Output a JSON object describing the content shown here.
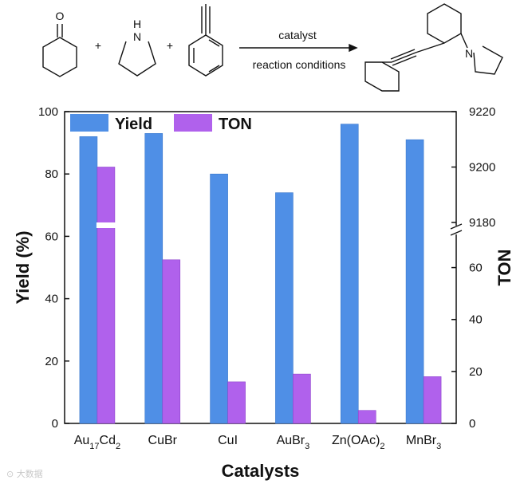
{
  "reaction_scheme": {
    "amine_label": "N",
    "amine_h_label": "H",
    "ketone_o_label": "O",
    "plus": "+",
    "arrow_top": "catalyst",
    "arrow_bottom": "reaction conditions",
    "product_n_label": "N"
  },
  "chart_data": {
    "type": "bar",
    "categories": [
      "Au17Cd2",
      "CuBr",
      "CuI",
      "AuBr3",
      "Zn(OAc)2",
      "MnBr3"
    ],
    "xlabel": "Catalysts",
    "ylabel": "Yield (%)",
    "y2label": "TON",
    "ylim": [
      0,
      100
    ],
    "yticks": [
      0,
      20,
      40,
      60,
      80,
      100
    ],
    "y2_lower": {
      "range": [
        0,
        70
      ],
      "ticks": [
        0,
        20,
        40,
        60
      ]
    },
    "y2_upper": {
      "range": [
        9180,
        9220
      ],
      "ticks": [
        9180,
        9200,
        9220
      ]
    },
    "legend_position": "top-left",
    "grid": false,
    "series": [
      {
        "name": "Yield",
        "color": "#4f8fe6",
        "axis": "left",
        "values": [
          92,
          93,
          80,
          74,
          96,
          91
        ]
      },
      {
        "name": "TON",
        "color": "#b061ec",
        "axis": "right",
        "values": [
          9200,
          63,
          16,
          19,
          5,
          18
        ]
      }
    ]
  },
  "watermark": "⊙ 大数据"
}
